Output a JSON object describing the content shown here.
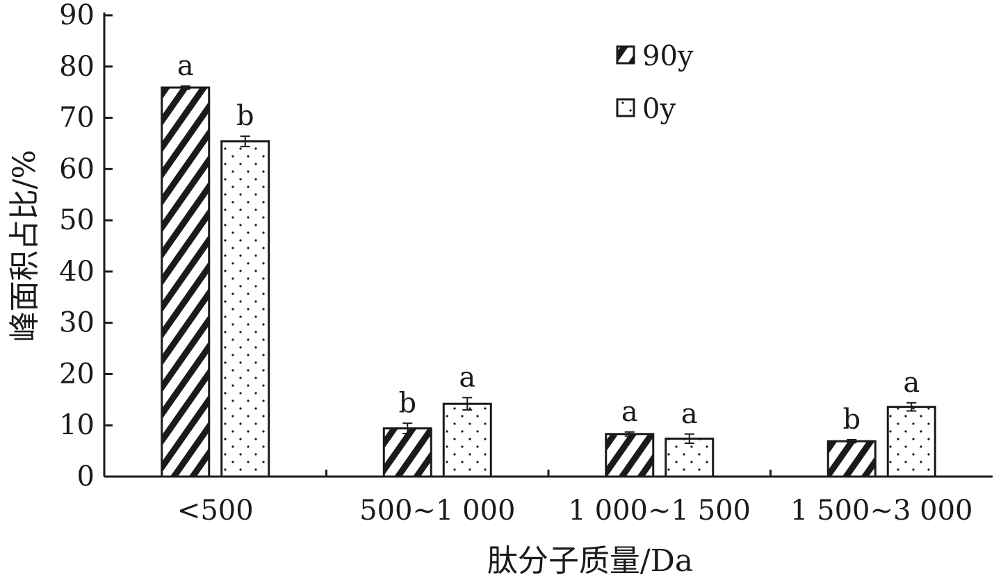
{
  "chart_data": {
    "type": "bar",
    "categories": [
      "<500",
      "500~1 000",
      "1 000~1 500",
      "1 500~3 000"
    ],
    "series": [
      {
        "name": "90y",
        "pattern": "hatch",
        "values": [
          75.9,
          9.4,
          8.3,
          6.9
        ],
        "errors": [
          0.3,
          1.0,
          0.4,
          0.3
        ],
        "significance": [
          "a",
          "b",
          "a",
          "b"
        ]
      },
      {
        "name": "0y",
        "pattern": "dots",
        "values": [
          65.4,
          14.2,
          7.4,
          13.6
        ],
        "errors": [
          1.0,
          1.2,
          0.9,
          0.8
        ],
        "significance": [
          "b",
          "a",
          "a",
          "a"
        ]
      }
    ],
    "xlabel": "肽分子质量/Da",
    "ylabel": "峰面积占比/%",
    "ylim": [
      0,
      90
    ],
    "yticks": [
      0,
      10,
      20,
      30,
      40,
      50,
      60,
      70,
      80,
      90
    ],
    "grid": false,
    "legend_position": "top-right",
    "colors": {
      "ink": "#1a1a1a",
      "background": "#ffffff"
    }
  }
}
